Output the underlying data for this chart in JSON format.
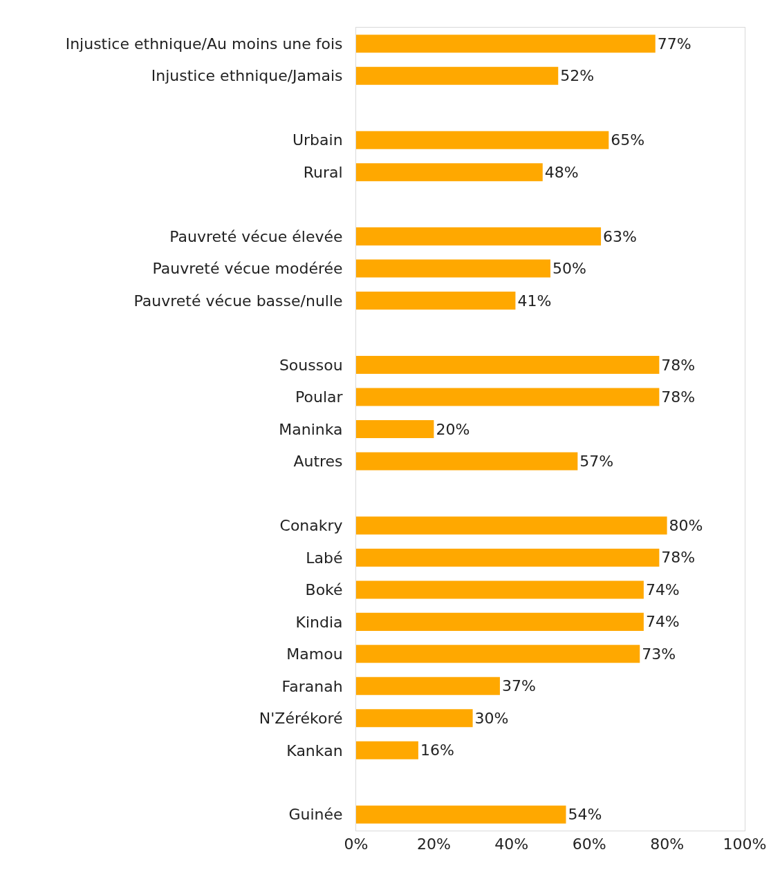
{
  "chart_data": {
    "type": "bar",
    "orientation": "horizontal",
    "categories": [
      "Injustice ethnique/Au moins une fois",
      "Injustice ethnique/Jamais",
      null,
      "Urbain",
      "Rural",
      null,
      "Pauvreté vécue élevée",
      "Pauvreté vécue modérée",
      "Pauvreté vécue basse/nulle",
      null,
      "Soussou",
      "Poular",
      "Maninka",
      "Autres",
      null,
      "Conakry",
      "Labé",
      "Boké",
      "Kindia",
      "Mamou",
      "Faranah",
      "N'Zérékoré",
      "Kankan",
      null,
      "Guinée"
    ],
    "values": [
      77,
      52,
      null,
      65,
      48,
      null,
      63,
      50,
      41,
      null,
      78,
      78,
      20,
      57,
      null,
      80,
      78,
      74,
      74,
      73,
      37,
      30,
      16,
      null,
      54
    ],
    "value_labels": [
      "77%",
      "52%",
      null,
      "65%",
      "48%",
      null,
      "63%",
      "50%",
      "41%",
      null,
      "78%",
      "78%",
      "20%",
      "57%",
      null,
      "80%",
      "78%",
      "74%",
      "74%",
      "73%",
      "37%",
      "30%",
      "16%",
      null,
      "54%"
    ],
    "color": "#ffa800",
    "xlim": [
      0,
      100
    ],
    "xticks": [
      {
        "value": 0,
        "label": "0%"
      },
      {
        "value": 20,
        "label": "20%"
      },
      {
        "value": 40,
        "label": "40%"
      },
      {
        "value": 60,
        "label": "60%"
      },
      {
        "value": 80,
        "label": "80%"
      },
      {
        "value": 100,
        "label": "100%"
      }
    ],
    "grid": false
  }
}
